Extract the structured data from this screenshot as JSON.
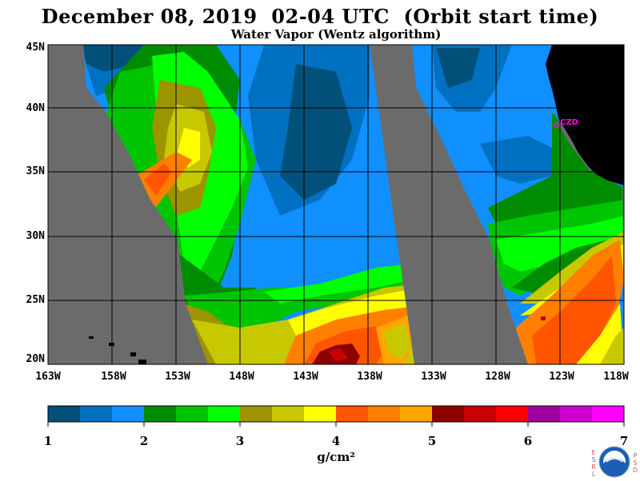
{
  "header": {
    "title": "December 08, 2019  02-04 UTC  (Orbit start time)",
    "subtitle": "Water Vapor (Wentz algorithm)"
  },
  "map": {
    "lat_labels": [
      "45N",
      "40N",
      "35N",
      "30N",
      "25N",
      "20N"
    ],
    "lon_labels": [
      "163W",
      "158W",
      "153W",
      "148W",
      "143W",
      "138W",
      "133W",
      "128W",
      "123W",
      "118W"
    ],
    "station_label": "CZD",
    "colors": {
      "no_data": "#6b6b6b",
      "land": "#000000",
      "grid": "#000000",
      "station": "#ff00ff"
    }
  },
  "colorbar": {
    "labels": [
      "1",
      "2",
      "3",
      "4",
      "5",
      "6",
      "7"
    ],
    "units": "g/cm²",
    "colors": [
      "#00507a",
      "#0070c0",
      "#1090ff",
      "#008c00",
      "#00c400",
      "#00ff00",
      "#9c9400",
      "#c8c800",
      "#ffff00",
      "#ff5500",
      "#ff7f00",
      "#ffa500",
      "#8c0000",
      "#c80000",
      "#ff0000",
      "#a000a0",
      "#d000d0",
      "#ff00ff"
    ]
  },
  "logo": {
    "left_letters": [
      "E",
      "S",
      "R",
      "L"
    ],
    "right_letters": [
      "P",
      "S",
      "D"
    ],
    "agency": "NOAA"
  }
}
